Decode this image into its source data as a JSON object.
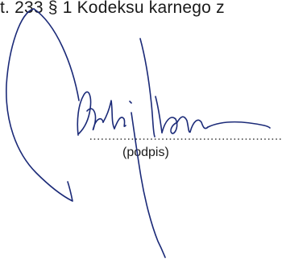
{
  "document": {
    "top_line_text": "t. 233 § 1 Kodeksu karnego z",
    "signature_caption": "(podpis)"
  }
}
